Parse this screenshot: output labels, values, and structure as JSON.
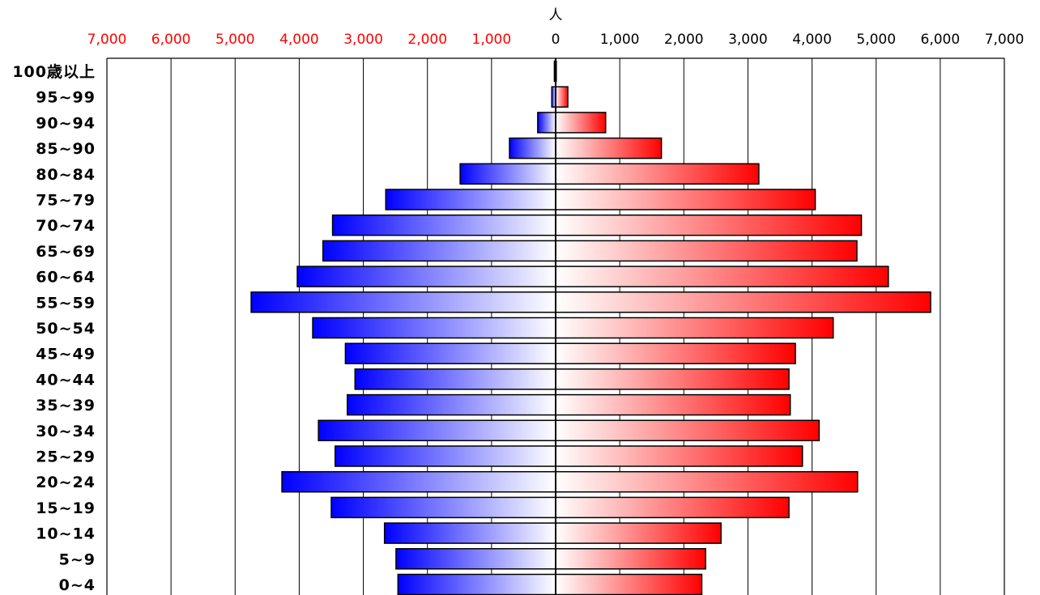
{
  "chart_data": {
    "type": "bar",
    "subtype": "population-pyramid",
    "unit_label": "人",
    "categories": [
      "100歳以上",
      "95~99",
      "90~94",
      "85~90",
      "80~84",
      "75~79",
      "70~74",
      "65~69",
      "60~64",
      "55~59",
      "50~54",
      "45~49",
      "40~44",
      "35~39",
      "30~34",
      "25~29",
      "20~24",
      "15~19",
      "10~14",
      "5~9",
      "0~4"
    ],
    "series": [
      {
        "color": "#0000ff",
        "side": "left",
        "values": [
          20,
          60,
          280,
          720,
          1490,
          2650,
          3480,
          3630,
          4030,
          4750,
          3790,
          3280,
          3130,
          3250,
          3700,
          3440,
          4270,
          3500,
          2670,
          2490,
          2460
        ]
      },
      {
        "color": "#ff0000",
        "side": "right",
        "values": [
          10,
          190,
          780,
          1650,
          3170,
          4050,
          4770,
          4700,
          5190,
          5850,
          4330,
          3740,
          3640,
          3660,
          4110,
          3850,
          4710,
          3640,
          2580,
          2340,
          2280
        ]
      }
    ],
    "x_ticks_left": [
      "7,000",
      "6,000",
      "5,000",
      "4,000",
      "3,000",
      "2,000",
      "1,000"
    ],
    "x_ticks_right": [
      "0",
      "1,000",
      "2,000",
      "3,000",
      "4,000",
      "5,000",
      "6,000",
      "7,000"
    ],
    "x_tick_colors": {
      "left": "#ff0000",
      "right": "#000000"
    },
    "xlim": [
      -7000,
      7000
    ],
    "grid": true
  }
}
